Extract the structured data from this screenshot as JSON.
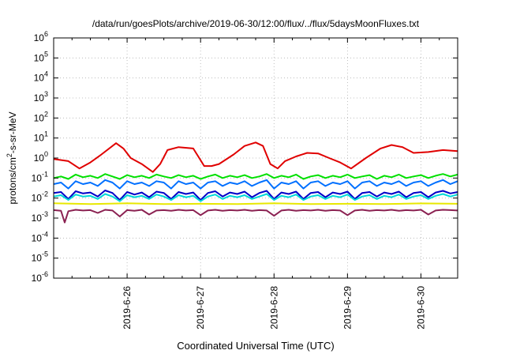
{
  "chart_data": {
    "type": "line",
    "title": "/data/run/goesPlots/archive/2019-06-30/12:00/flux/../flux/5daysMoonFluxes.txt",
    "xlabel": "Coordinated Universal Time (UTC)",
    "ylabel": {
      "pre": "protons/cm",
      "sup": "2",
      "post": "-s-sr-MeV"
    },
    "yscale": "log",
    "ylim_exponents": [
      -6,
      6
    ],
    "xlim": [
      "2019-06-25 00:00",
      "2019-06-30 12:00"
    ],
    "grid": true,
    "x_ticks": [
      "2019-6-26",
      "2019-6-27",
      "2019-6-28",
      "2019-6-29",
      "2019-6-30"
    ],
    "y_ticks": [
      {
        "base": "10",
        "exp": "6"
      },
      {
        "base": "10",
        "exp": "5"
      },
      {
        "base": "10",
        "exp": "4"
      },
      {
        "base": "10",
        "exp": "3"
      },
      {
        "base": "10",
        "exp": "2"
      },
      {
        "base": "10",
        "exp": "1"
      },
      {
        "base": "10",
        "exp": "0"
      },
      {
        "base": "10",
        "exp": "-1"
      },
      {
        "base": "10",
        "exp": "-2"
      },
      {
        "base": "10",
        "exp": "-3"
      },
      {
        "base": "10",
        "exp": "-4"
      },
      {
        "base": "10",
        "exp": "-5"
      },
      {
        "base": "10",
        "exp": "-6"
      }
    ],
    "series": [
      {
        "color": "#e00000",
        "x_days": [
          0,
          0.2,
          0.35,
          0.5,
          0.65,
          0.85,
          0.95,
          1.05,
          1.2,
          1.35,
          1.45,
          1.55,
          1.7,
          1.9,
          2.05,
          2.15,
          2.25,
          2.45,
          2.6,
          2.75,
          2.85,
          2.95,
          3.05,
          3.15,
          3.3,
          3.45,
          3.6,
          3.75,
          3.9,
          4.05,
          4.25,
          4.45,
          4.6,
          4.75,
          4.9,
          5.1,
          5.3,
          5.5
        ],
        "y_values": [
          0.9,
          0.7,
          0.3,
          0.6,
          1.5,
          5.5,
          3.0,
          1.0,
          0.5,
          0.2,
          0.5,
          2.5,
          3.5,
          3.0,
          0.4,
          0.4,
          0.5,
          1.5,
          4.0,
          6.0,
          4.0,
          0.5,
          0.3,
          0.7,
          1.2,
          1.8,
          1.7,
          1.0,
          0.6,
          0.3,
          1.0,
          3.0,
          4.5,
          3.5,
          1.8,
          2.0,
          2.5,
          2.2
        ]
      },
      {
        "color": "#00e000",
        "x_days": [
          0,
          0.1,
          0.2,
          0.3,
          0.4,
          0.5,
          0.6,
          0.7,
          0.8,
          0.9,
          1.0,
          1.1,
          1.2,
          1.3,
          1.4,
          1.5,
          1.6,
          1.7,
          1.8,
          1.9,
          2.0,
          2.1,
          2.2,
          2.3,
          2.4,
          2.5,
          2.6,
          2.7,
          2.8,
          2.9,
          3.0,
          3.1,
          3.2,
          3.3,
          3.4,
          3.5,
          3.6,
          3.7,
          3.8,
          3.9,
          4.0,
          4.1,
          4.2,
          4.3,
          4.4,
          4.5,
          4.6,
          4.7,
          4.8,
          4.9,
          5.0,
          5.1,
          5.2,
          5.3,
          5.4,
          5.5
        ],
        "y_values": [
          0.1,
          0.12,
          0.09,
          0.15,
          0.11,
          0.13,
          0.1,
          0.16,
          0.12,
          0.09,
          0.14,
          0.11,
          0.13,
          0.1,
          0.15,
          0.12,
          0.1,
          0.14,
          0.11,
          0.13,
          0.09,
          0.12,
          0.15,
          0.1,
          0.13,
          0.11,
          0.14,
          0.1,
          0.12,
          0.16,
          0.1,
          0.13,
          0.11,
          0.15,
          0.09,
          0.12,
          0.14,
          0.1,
          0.13,
          0.11,
          0.15,
          0.1,
          0.12,
          0.14,
          0.09,
          0.13,
          0.11,
          0.15,
          0.1,
          0.12,
          0.14,
          0.1,
          0.13,
          0.16,
          0.12,
          0.15
        ]
      },
      {
        "color": "#0070ff",
        "x_days": [
          0,
          0.1,
          0.2,
          0.3,
          0.4,
          0.5,
          0.6,
          0.7,
          0.8,
          0.9,
          1.0,
          1.1,
          1.2,
          1.3,
          1.4,
          1.5,
          1.6,
          1.7,
          1.8,
          1.9,
          2.0,
          2.1,
          2.2,
          2.3,
          2.4,
          2.5,
          2.6,
          2.7,
          2.8,
          2.9,
          3.0,
          3.1,
          3.2,
          3.3,
          3.4,
          3.5,
          3.6,
          3.7,
          3.8,
          3.9,
          4.0,
          4.1,
          4.2,
          4.3,
          4.4,
          4.5,
          4.6,
          4.7,
          4.8,
          4.9,
          5.0,
          5.1,
          5.2,
          5.3,
          5.4,
          5.5
        ],
        "y_values": [
          0.05,
          0.06,
          0.03,
          0.07,
          0.05,
          0.06,
          0.04,
          0.08,
          0.06,
          0.03,
          0.07,
          0.05,
          0.06,
          0.04,
          0.07,
          0.06,
          0.03,
          0.07,
          0.05,
          0.06,
          0.03,
          0.06,
          0.07,
          0.04,
          0.06,
          0.05,
          0.07,
          0.04,
          0.06,
          0.08,
          0.03,
          0.06,
          0.05,
          0.07,
          0.03,
          0.06,
          0.07,
          0.04,
          0.06,
          0.05,
          0.07,
          0.03,
          0.06,
          0.07,
          0.04,
          0.06,
          0.05,
          0.07,
          0.04,
          0.06,
          0.07,
          0.04,
          0.06,
          0.08,
          0.05,
          0.07
        ]
      },
      {
        "color": "#00d8d8",
        "x_days": [
          0,
          0.1,
          0.2,
          0.3,
          0.4,
          0.5,
          0.6,
          0.7,
          0.8,
          0.9,
          1.0,
          1.1,
          1.2,
          1.3,
          1.4,
          1.5,
          1.6,
          1.7,
          1.8,
          1.9,
          2.0,
          2.1,
          2.2,
          2.3,
          2.4,
          2.5,
          2.6,
          2.7,
          2.8,
          2.9,
          3.0,
          3.1,
          3.2,
          3.3,
          3.4,
          3.5,
          3.6,
          3.7,
          3.8,
          3.9,
          4.0,
          4.1,
          4.2,
          4.3,
          4.4,
          4.5,
          4.6,
          4.7,
          4.8,
          4.9,
          5.0,
          5.1,
          5.2,
          5.3,
          5.4,
          5.5
        ],
        "y_values": [
          0.012,
          0.014,
          0.008,
          0.015,
          0.012,
          0.013,
          0.009,
          0.016,
          0.012,
          0.007,
          0.014,
          0.011,
          0.013,
          0.009,
          0.015,
          0.012,
          0.008,
          0.014,
          0.011,
          0.013,
          0.007,
          0.012,
          0.015,
          0.009,
          0.013,
          0.011,
          0.014,
          0.009,
          0.012,
          0.016,
          0.008,
          0.013,
          0.011,
          0.015,
          0.008,
          0.012,
          0.014,
          0.009,
          0.013,
          0.011,
          0.015,
          0.008,
          0.012,
          0.014,
          0.009,
          0.013,
          0.011,
          0.015,
          0.009,
          0.012,
          0.014,
          0.009,
          0.013,
          0.016,
          0.012,
          0.015
        ]
      },
      {
        "color": "#0000c8",
        "x_days": [
          0,
          0.1,
          0.2,
          0.3,
          0.4,
          0.5,
          0.6,
          0.7,
          0.8,
          0.9,
          1.0,
          1.1,
          1.2,
          1.3,
          1.4,
          1.5,
          1.6,
          1.7,
          1.8,
          1.9,
          2.0,
          2.1,
          2.2,
          2.3,
          2.4,
          2.5,
          2.6,
          2.7,
          2.8,
          2.9,
          3.0,
          3.1,
          3.2,
          3.3,
          3.4,
          3.5,
          3.6,
          3.7,
          3.8,
          3.9,
          4.0,
          4.1,
          4.2,
          4.3,
          4.4,
          4.5,
          4.6,
          4.7,
          4.8,
          4.9,
          5.0,
          5.1,
          5.2,
          5.3,
          5.4,
          5.5
        ],
        "y_values": [
          0.018,
          0.02,
          0.009,
          0.022,
          0.017,
          0.019,
          0.012,
          0.024,
          0.018,
          0.008,
          0.02,
          0.015,
          0.019,
          0.011,
          0.021,
          0.018,
          0.009,
          0.02,
          0.016,
          0.019,
          0.008,
          0.018,
          0.022,
          0.012,
          0.019,
          0.016,
          0.021,
          0.011,
          0.018,
          0.023,
          0.009,
          0.019,
          0.016,
          0.021,
          0.009,
          0.018,
          0.02,
          0.011,
          0.019,
          0.016,
          0.021,
          0.009,
          0.018,
          0.02,
          0.012,
          0.019,
          0.016,
          0.021,
          0.011,
          0.018,
          0.02,
          0.011,
          0.019,
          0.023,
          0.017,
          0.02
        ]
      },
      {
        "color": "#e8e800",
        "x_days": [
          0,
          0.5,
          1.0,
          1.5,
          2.0,
          2.5,
          3.0,
          3.5,
          4.0,
          4.5,
          5.0,
          5.5
        ],
        "y_values": [
          0.0055,
          0.005,
          0.0055,
          0.005,
          0.0052,
          0.005,
          0.0055,
          0.005,
          0.0052,
          0.005,
          0.0054,
          0.0052
        ]
      },
      {
        "color": "#8b2252",
        "x_days": [
          0,
          0.1,
          0.15,
          0.2,
          0.3,
          0.4,
          0.5,
          0.6,
          0.7,
          0.8,
          0.9,
          1.0,
          1.1,
          1.2,
          1.3,
          1.4,
          1.5,
          1.6,
          1.7,
          1.8,
          1.9,
          2.0,
          2.1,
          2.2,
          2.3,
          2.4,
          2.5,
          2.6,
          2.7,
          2.8,
          2.9,
          3.0,
          3.1,
          3.2,
          3.3,
          3.4,
          3.5,
          3.6,
          3.7,
          3.8,
          3.9,
          4.0,
          4.1,
          4.2,
          4.3,
          4.4,
          4.5,
          4.6,
          4.7,
          4.8,
          4.9,
          5.0,
          5.1,
          5.2,
          5.3,
          5.4,
          5.5
        ],
        "y_values": [
          0.0025,
          0.0023,
          0.0006,
          0.0022,
          0.0026,
          0.0024,
          0.0025,
          0.0018,
          0.0026,
          0.0024,
          0.0012,
          0.0025,
          0.0023,
          0.0026,
          0.0015,
          0.0024,
          0.0025,
          0.0023,
          0.0026,
          0.0024,
          0.0025,
          0.0014,
          0.0024,
          0.0026,
          0.0023,
          0.0025,
          0.0024,
          0.0026,
          0.0023,
          0.0025,
          0.0024,
          0.0013,
          0.0024,
          0.0026,
          0.0023,
          0.0025,
          0.0024,
          0.0026,
          0.0023,
          0.0025,
          0.0024,
          0.0014,
          0.0024,
          0.0026,
          0.0023,
          0.0025,
          0.0024,
          0.0026,
          0.0023,
          0.0025,
          0.0024,
          0.0026,
          0.0015,
          0.0024,
          0.0026,
          0.0025,
          0.0024
        ]
      }
    ]
  }
}
